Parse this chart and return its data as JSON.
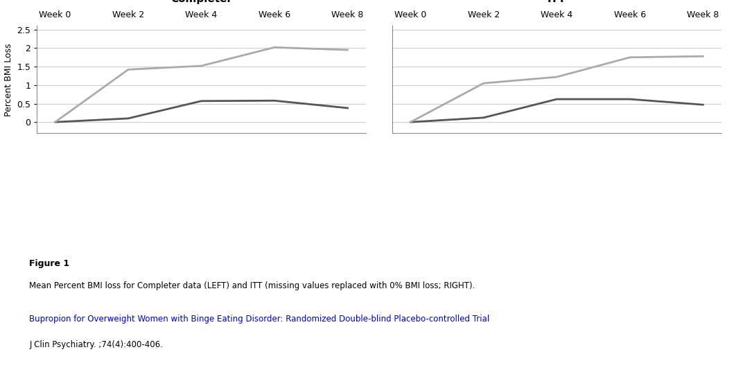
{
  "weeks": [
    0,
    2,
    4,
    6,
    8
  ],
  "week_labels": [
    "Week 0",
    "Week 2",
    "Week 4",
    "Week 6",
    "Week 8"
  ],
  "completer": {
    "title": "Completer",
    "dark_line": [
      0.0,
      -0.1,
      -0.57,
      -0.58,
      -0.38
    ],
    "light_line": [
      0.0,
      -1.42,
      -1.52,
      -2.02,
      -1.95
    ]
  },
  "itt": {
    "title": "ITT",
    "dark_line": [
      0.0,
      -0.12,
      -0.62,
      -0.62,
      -0.47
    ],
    "light_line": [
      0.0,
      -1.05,
      -1.22,
      -1.75,
      -1.78
    ]
  },
  "dark_color": "#555555",
  "light_color": "#aaaaaa",
  "ylim": [
    0.3,
    -2.6
  ],
  "yticks": [
    0,
    -0.5,
    -1.0,
    -1.5,
    -2.0,
    -2.5
  ],
  "ytick_labels": [
    "0",
    "0.5",
    "1",
    "1.5",
    "2",
    "2.5"
  ],
  "ylabel": "Percent BMI Loss",
  "background_color": "#ffffff",
  "grid_color": "#cccccc",
  "line_width": 2.0,
  "figure_text": "Figure 1",
  "caption": "Mean Percent BMI loss for Completer data (LEFT) and ITT (missing values replaced with 0% BMI loss; RIGHT).",
  "reference_line1": "Bupropion for Overweight Women with Binge Eating Disorder: Randomized Double-blind Placebo-controlled Trial",
  "reference_line2": "J Clin Psychiatry. ;74(4):400-406."
}
